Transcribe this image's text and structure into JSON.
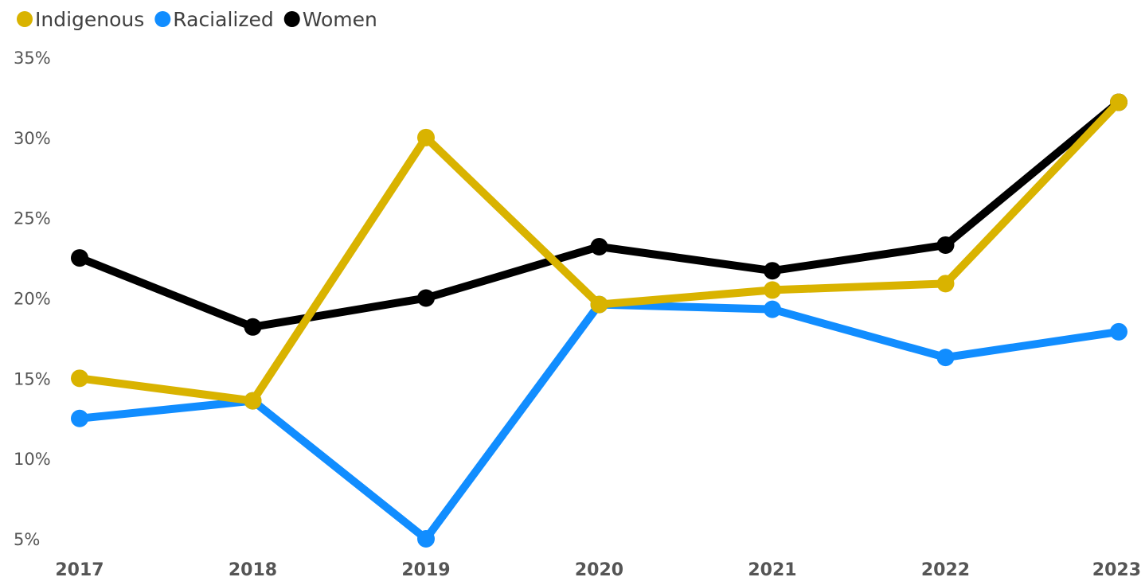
{
  "chart_data": {
    "type": "line",
    "title": "",
    "xlabel": "",
    "ylabel": "",
    "categories": [
      "2017",
      "2018",
      "2019",
      "2020",
      "2021",
      "2022",
      "2023"
    ],
    "ylim": [
      5,
      35
    ],
    "yticks": [
      5,
      10,
      15,
      20,
      25,
      30,
      35
    ],
    "ytick_labels": [
      "5%",
      "10%",
      "15%",
      "20%",
      "25%",
      "30%",
      "35%"
    ],
    "grid": false,
    "legend": "top-left",
    "series": [
      {
        "name": "Indigenous",
        "color": "#D9B300",
        "values": [
          15.0,
          13.6,
          30.0,
          19.6,
          20.5,
          20.9,
          32.2
        ]
      },
      {
        "name": "Racialized",
        "color": "#118DFF",
        "values": [
          12.5,
          13.6,
          5.0,
          19.6,
          19.3,
          16.3,
          17.9
        ]
      },
      {
        "name": "Women",
        "color": "#000000",
        "values": [
          22.5,
          18.2,
          20.0,
          23.2,
          21.7,
          23.3,
          32.2
        ]
      }
    ],
    "draw_order": [
      "Racialized",
      "Women",
      "Indigenous"
    ]
  }
}
